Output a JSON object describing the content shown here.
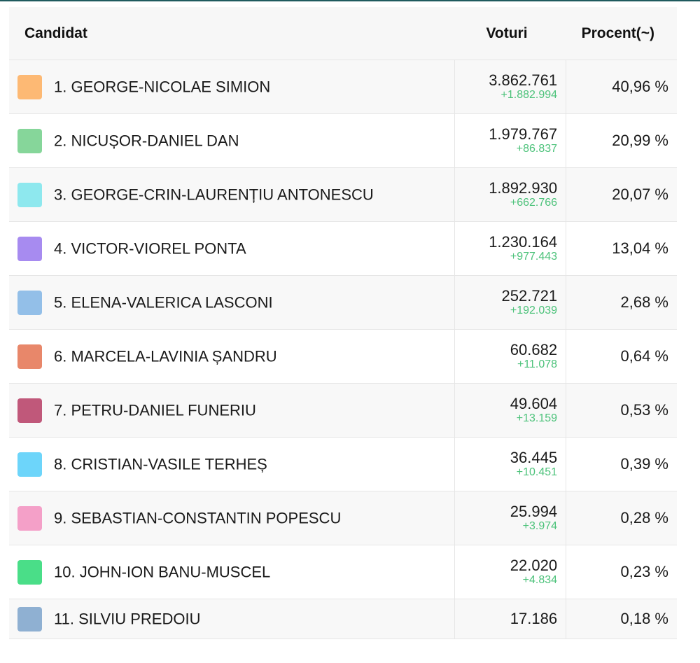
{
  "header": {
    "candidate": "Candidat",
    "votes": "Voturi",
    "percent": "Procent(~)"
  },
  "rows": [
    {
      "name": "1. GEORGE-NICOLAE SIMION",
      "votes": "3.862.761",
      "delta": "+1.882.994",
      "percent": "40,96 %",
      "color": "#fdb974"
    },
    {
      "name": "2. NICUȘOR-DANIEL DAN",
      "votes": "1.979.767",
      "delta": "+86.837",
      "percent": "20,99 %",
      "color": "#86d69a"
    },
    {
      "name": "3. GEORGE-CRIN-LAURENȚIU ANTONESCU",
      "votes": "1.892.930",
      "delta": "+662.766",
      "percent": "20,07 %",
      "color": "#8ee8ee"
    },
    {
      "name": "4. VICTOR-VIOREL PONTA",
      "votes": "1.230.164",
      "delta": "+977.443",
      "percent": "13,04 %",
      "color": "#a78bf0"
    },
    {
      "name": "5. ELENA-VALERICA LASCONI",
      "votes": "252.721",
      "delta": "+192.039",
      "percent": "2,68 %",
      "color": "#93bfe8"
    },
    {
      "name": "6. MARCELA-LAVINIA ȘANDRU",
      "votes": "60.682",
      "delta": "+11.078",
      "percent": "0,64 %",
      "color": "#e8876a"
    },
    {
      "name": "7. PETRU-DANIEL FUNERIU",
      "votes": "49.604",
      "delta": "+13.159",
      "percent": "0,53 %",
      "color": "#c0587a"
    },
    {
      "name": "8. CRISTIAN-VASILE TERHEȘ",
      "votes": "36.445",
      "delta": "+10.451",
      "percent": "0,39 %",
      "color": "#6dd5fa"
    },
    {
      "name": "9. SEBASTIAN-CONSTANTIN POPESCU",
      "votes": "25.994",
      "delta": "+3.974",
      "percent": "0,28 %",
      "color": "#f4a0c8"
    },
    {
      "name": "10. JOHN-ION BANU-MUSCEL",
      "votes": "22.020",
      "delta": "+4.834",
      "percent": "0,23 %",
      "color": "#4ade88"
    },
    {
      "name": "11. SILVIU PREDOIU",
      "votes": "17.186",
      "delta": "",
      "percent": "0,18 %",
      "color": "#8fb0d2"
    }
  ]
}
